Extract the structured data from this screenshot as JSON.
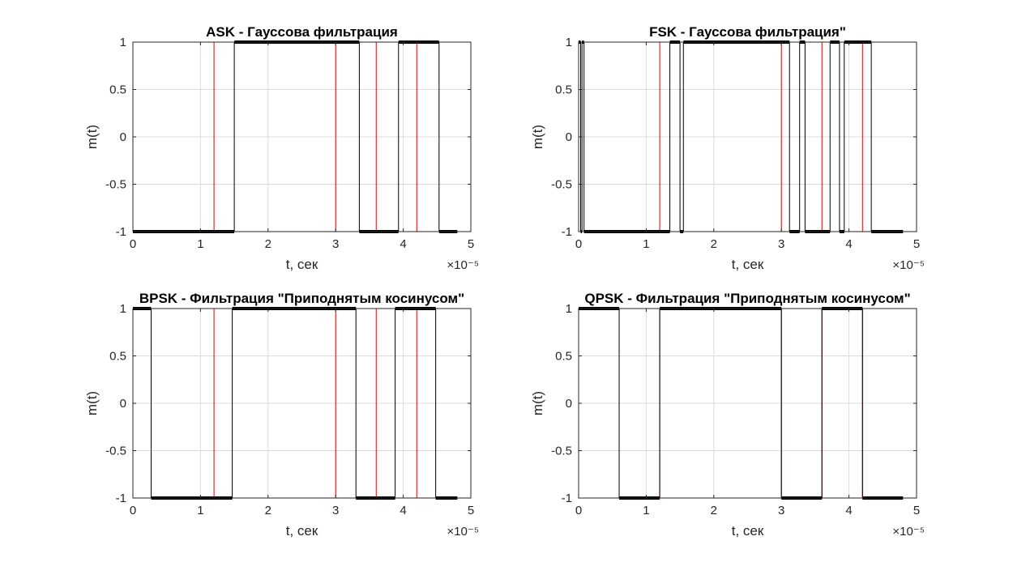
{
  "chart_data": [
    {
      "type": "line",
      "title": "ASK - Гауссова фильтрация",
      "xlabel": "t, сек",
      "ylabel": "m(t)",
      "x_exponent_label": "×10⁻⁵",
      "xlim": [
        0,
        5
      ],
      "ylim": [
        -1,
        1
      ],
      "xticks": [
        "0",
        "1",
        "2",
        "3",
        "4",
        "5"
      ],
      "yticks": [
        "-1",
        "-0.5",
        "0",
        "0.5",
        "1"
      ],
      "grid": true,
      "series": [
        {
          "color": "#e00000",
          "line_width": 1,
          "points": [
            [
              0,
              -1
            ],
            [
              1.2,
              -1
            ],
            [
              1.2,
              1
            ],
            [
              3.0,
              1
            ],
            [
              3.0,
              -1
            ],
            [
              3.6,
              -1
            ],
            [
              3.6,
              1
            ],
            [
              4.2,
              1
            ],
            [
              4.2,
              -1
            ],
            [
              4.8,
              -1
            ]
          ]
        },
        {
          "color": "#000000",
          "line_width": 1,
          "points": [
            [
              0,
              -1
            ],
            [
              1.5,
              -1
            ],
            [
              1.5,
              1
            ],
            [
              3.35,
              1
            ],
            [
              3.35,
              -1
            ],
            [
              3.93,
              -1
            ],
            [
              3.93,
              1
            ],
            [
              4.53,
              1
            ],
            [
              4.53,
              -1
            ],
            [
              4.8,
              -1
            ]
          ]
        }
      ]
    },
    {
      "type": "line",
      "title": "FSK - Гауссова фильтрация\"",
      "xlabel": "t, сек",
      "ylabel": "m(t)",
      "x_exponent_label": "×10⁻⁵",
      "xlim": [
        0,
        5
      ],
      "ylim": [
        -1,
        1
      ],
      "xticks": [
        "0",
        "1",
        "2",
        "3",
        "4",
        "5"
      ],
      "yticks": [
        "-1",
        "-0.5",
        "0",
        "0.5",
        "1"
      ],
      "grid": true,
      "series": [
        {
          "color": "#e00000",
          "line_width": 1,
          "points": [
            [
              0,
              -1
            ],
            [
              1.2,
              -1
            ],
            [
              1.2,
              1
            ],
            [
              3.0,
              1
            ],
            [
              3.0,
              -1
            ],
            [
              3.6,
              -1
            ],
            [
              3.6,
              1
            ],
            [
              4.2,
              1
            ],
            [
              4.2,
              -1
            ],
            [
              4.8,
              -1
            ]
          ]
        },
        {
          "color": "#000000",
          "line_width": 1,
          "points": [
            [
              0,
              1
            ],
            [
              0.03,
              1
            ],
            [
              0.03,
              -1
            ],
            [
              0.05,
              -1
            ],
            [
              0.05,
              1
            ],
            [
              0.08,
              1
            ],
            [
              0.08,
              -1
            ],
            [
              1.35,
              -1
            ],
            [
              1.35,
              1
            ],
            [
              1.5,
              1
            ],
            [
              1.5,
              -1
            ],
            [
              1.55,
              -1
            ],
            [
              1.55,
              1
            ],
            [
              3.12,
              1
            ],
            [
              3.12,
              -1
            ],
            [
              3.27,
              -1
            ],
            [
              3.27,
              1
            ],
            [
              3.35,
              1
            ],
            [
              3.35,
              -1
            ],
            [
              3.72,
              -1
            ],
            [
              3.72,
              1
            ],
            [
              3.86,
              1
            ],
            [
              3.86,
              -1
            ],
            [
              3.93,
              -1
            ],
            [
              3.93,
              1
            ],
            [
              4.33,
              1
            ],
            [
              4.33,
              -1
            ],
            [
              4.8,
              -1
            ]
          ]
        }
      ]
    },
    {
      "type": "line",
      "title": "BPSK - Фильтрация \"Приподнятым косинусом\"",
      "xlabel": "t, сек",
      "ylabel": "m(t)",
      "x_exponent_label": "×10⁻⁵",
      "xlim": [
        0,
        5
      ],
      "ylim": [
        -1,
        1
      ],
      "xticks": [
        "0",
        "1",
        "2",
        "3",
        "4",
        "5"
      ],
      "yticks": [
        "-1",
        "-0.5",
        "0",
        "0.5",
        "1"
      ],
      "grid": true,
      "series": [
        {
          "color": "#e00000",
          "line_width": 1,
          "points": [
            [
              0,
              -1
            ],
            [
              1.2,
              -1
            ],
            [
              1.2,
              1
            ],
            [
              3.0,
              1
            ],
            [
              3.0,
              -1
            ],
            [
              3.6,
              -1
            ],
            [
              3.6,
              1
            ],
            [
              4.2,
              1
            ],
            [
              4.2,
              -1
            ],
            [
              4.8,
              -1
            ]
          ]
        },
        {
          "color": "#000000",
          "line_width": 1,
          "points": [
            [
              0,
              1
            ],
            [
              0.27,
              1
            ],
            [
              0.27,
              -1
            ],
            [
              1.47,
              -1
            ],
            [
              1.47,
              1
            ],
            [
              3.3,
              1
            ],
            [
              3.3,
              -1
            ],
            [
              3.88,
              -1
            ],
            [
              3.88,
              1
            ],
            [
              4.48,
              1
            ],
            [
              4.48,
              -1
            ],
            [
              4.8,
              -1
            ]
          ]
        }
      ]
    },
    {
      "type": "line",
      "title": "QPSK - Фильтрация \"Приподнятым косинусом\"",
      "xlabel": "t, сек",
      "ylabel": "m(t)",
      "x_exponent_label": "×10⁻⁵",
      "xlim": [
        0,
        5
      ],
      "ylim": [
        -1,
        1
      ],
      "xticks": [
        "0",
        "1",
        "2",
        "3",
        "4",
        "5"
      ],
      "yticks": [
        "-1",
        "-0.5",
        "0",
        "0.5",
        "1"
      ],
      "grid": true,
      "series": [
        {
          "color": "#e00000",
          "line_width": 1,
          "points": [
            [
              0,
              -1
            ],
            [
              1.2,
              -1
            ],
            [
              1.2,
              1
            ],
            [
              3.0,
              1
            ],
            [
              3.0,
              -1
            ],
            [
              3.6,
              -1
            ],
            [
              3.6,
              1
            ],
            [
              4.2,
              1
            ],
            [
              4.2,
              -1
            ],
            [
              4.8,
              -1
            ]
          ]
        },
        {
          "color": "#000000",
          "line_width": 1,
          "points": [
            [
              0,
              1
            ],
            [
              0.6,
              1
            ],
            [
              0.6,
              -1
            ],
            [
              1.2,
              -1
            ],
            [
              1.2,
              1
            ],
            [
              3.0,
              1
            ],
            [
              3.0,
              -1
            ],
            [
              3.6,
              -1
            ],
            [
              3.6,
              1
            ],
            [
              4.2,
              1
            ],
            [
              4.2,
              -1
            ],
            [
              4.8,
              -1
            ]
          ]
        }
      ]
    }
  ]
}
